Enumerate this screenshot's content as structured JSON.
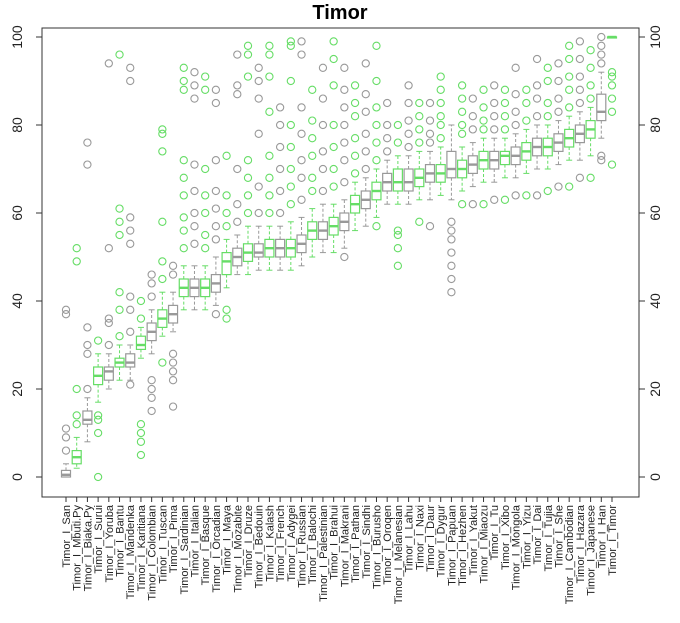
{
  "chart_data": {
    "type": "boxplot",
    "title": "Timor",
    "xlabel": "",
    "ylabel": "",
    "ylim": [
      0,
      100
    ],
    "y_ticks": [
      0,
      20,
      40,
      60,
      80,
      100
    ],
    "y_ticks_both_sides": true,
    "grid": false,
    "colors": [
      "#999999",
      "#66dd66"
    ],
    "boxes": [
      {
        "label": "Timor_I_San",
        "min": 0,
        "q1": 0,
        "median": 0.5,
        "q3": 1.5,
        "max": 3,
        "outliers": [
          6,
          9,
          11,
          37,
          38
        ]
      },
      {
        "label": "Timor_I_Mbuti.Py",
        "min": 2,
        "q1": 3,
        "median": 4.5,
        "q3": 6,
        "max": 9,
        "outliers": [
          12,
          14,
          20,
          49,
          52
        ]
      },
      {
        "label": "Timor_I_Biaka.Py",
        "min": 8,
        "q1": 12,
        "median": 13,
        "q3": 15,
        "max": 18,
        "outliers": [
          20,
          28,
          30,
          34,
          71,
          76
        ]
      },
      {
        "label": "Timor_I_Surui",
        "min": 17,
        "q1": 21,
        "median": 23,
        "q3": 25,
        "max": 28,
        "outliers": [
          0,
          10,
          13,
          14,
          31
        ]
      },
      {
        "label": "Timor_I_Yoruba",
        "min": 20,
        "q1": 22,
        "median": 24,
        "q3": 25,
        "max": 28,
        "outliers": [
          30,
          35,
          36,
          52,
          94
        ]
      },
      {
        "label": "Timor_I_Bantu",
        "min": 22,
        "q1": 25,
        "median": 26,
        "q3": 27,
        "max": 30,
        "outliers": [
          32,
          38,
          42,
          55,
          58,
          61,
          96
        ]
      },
      {
        "label": "Timor_I_Mandenka",
        "min": 22,
        "q1": 25,
        "median": 26,
        "q3": 28,
        "max": 30,
        "outliers": [
          21,
          33,
          38,
          41,
          53,
          56,
          59,
          90,
          93
        ]
      },
      {
        "label": "Timor_I_Karitiana",
        "min": 27,
        "q1": 29,
        "median": 30,
        "q3": 32,
        "max": 34,
        "outliers": [
          5,
          8,
          10,
          12,
          36,
          40
        ]
      },
      {
        "label": "Timor_I_Colombian",
        "min": 28,
        "q1": 31,
        "median": 33,
        "q3": 35,
        "max": 38,
        "outliers": [
          15,
          18,
          20,
          22,
          41,
          44,
          46
        ]
      },
      {
        "label": "Timor_I_Tuscan",
        "min": 32,
        "q1": 34,
        "median": 36,
        "q3": 38,
        "max": 42,
        "outliers": [
          26,
          45,
          49,
          58,
          74,
          78,
          79
        ]
      },
      {
        "label": "Timor_I_Pima",
        "min": 33,
        "q1": 35,
        "median": 37,
        "q3": 39,
        "max": 42,
        "outliers": [
          16,
          22,
          24,
          26,
          28,
          46,
          48
        ]
      },
      {
        "label": "Timor_I_Sardinian",
        "min": 38,
        "q1": 41,
        "median": 43,
        "q3": 45,
        "max": 48,
        "outliers": [
          52,
          56,
          59,
          64,
          68,
          72,
          88,
          90,
          93
        ]
      },
      {
        "label": "Timor_I_Italian",
        "min": 38,
        "q1": 41,
        "median": 43,
        "q3": 45,
        "max": 48,
        "outliers": [
          53,
          57,
          60,
          65,
          71,
          86,
          89,
          92
        ]
      },
      {
        "label": "Timor_I_Basque",
        "min": 38,
        "q1": 41,
        "median": 43,
        "q3": 45,
        "max": 48,
        "outliers": [
          52,
          55,
          60,
          64,
          70,
          88,
          91
        ]
      },
      {
        "label": "Timor_I_Orcadian",
        "min": 39,
        "q1": 42,
        "median": 44,
        "q3": 46,
        "max": 50,
        "outliers": [
          37,
          54,
          57,
          61,
          65,
          72,
          85,
          88
        ]
      },
      {
        "label": "Timor_I_Maya",
        "min": 43,
        "q1": 46,
        "median": 49,
        "q3": 51,
        "max": 54,
        "outliers": [
          36,
          38,
          57,
          60,
          64,
          73
        ]
      },
      {
        "label": "Timor_I_Mozabite",
        "min": 46,
        "q1": 48,
        "median": 50,
        "q3": 52,
        "max": 55,
        "outliers": [
          58,
          62,
          70,
          87,
          89,
          96
        ]
      },
      {
        "label": "Timor_I_Druze",
        "min": 46,
        "q1": 49,
        "median": 51,
        "q3": 53,
        "max": 57,
        "outliers": [
          60,
          64,
          68,
          72,
          91,
          96,
          98
        ]
      },
      {
        "label": "Timor_I_Bedouin",
        "min": 47,
        "q1": 50,
        "median": 51,
        "q3": 53,
        "max": 57,
        "outliers": [
          60,
          66,
          78,
          86,
          90,
          93
        ]
      },
      {
        "label": "Timor_I_Kalash",
        "min": 47,
        "q1": 50,
        "median": 52,
        "q3": 54,
        "max": 57,
        "outliers": [
          60,
          64,
          68,
          73,
          83,
          91,
          96,
          98
        ]
      },
      {
        "label": "Timor_I_French",
        "min": 47,
        "q1": 50,
        "median": 52,
        "q3": 54,
        "max": 57,
        "outliers": [
          60,
          65,
          70,
          75,
          80,
          84
        ]
      },
      {
        "label": "Timor_I_Adygei",
        "min": 47,
        "q1": 50,
        "median": 52,
        "q3": 54,
        "max": 58,
        "outliers": [
          62,
          66,
          70,
          75,
          80,
          90,
          98,
          99
        ]
      },
      {
        "label": "Timor_I_Russian",
        "min": 48,
        "q1": 51,
        "median": 53,
        "q3": 55,
        "max": 59,
        "outliers": [
          63,
          68,
          72,
          78,
          84,
          96,
          99
        ]
      },
      {
        "label": "Timor_I_Balochi",
        "min": 50,
        "q1": 54,
        "median": 56,
        "q3": 58,
        "max": 61,
        "outliers": [
          65,
          68,
          73,
          77,
          81,
          88
        ]
      },
      {
        "label": "Timor_I_Palestinian",
        "min": 51,
        "q1": 54,
        "median": 56,
        "q3": 58,
        "max": 62,
        "outliers": [
          65,
          70,
          74,
          80,
          86,
          93
        ]
      },
      {
        "label": "Timor_I_Brahui",
        "min": 51,
        "q1": 55,
        "median": 57,
        "q3": 59,
        "max": 62,
        "outliers": [
          66,
          70,
          75,
          80,
          89,
          95,
          99
        ]
      },
      {
        "label": "Timor_I_Makrani",
        "min": 52,
        "q1": 56,
        "median": 58,
        "q3": 60,
        "max": 63,
        "outliers": [
          50,
          67,
          72,
          76,
          80,
          84,
          88,
          93
        ]
      },
      {
        "label": "Timor_I_Pathan",
        "min": 56,
        "q1": 60,
        "median": 62,
        "q3": 64,
        "max": 67,
        "outliers": [
          69,
          73,
          77,
          82,
          85,
          89
        ]
      },
      {
        "label": "Timor_I_Sindhi",
        "min": 57,
        "q1": 61,
        "median": 63,
        "q3": 65,
        "max": 68,
        "outliers": [
          70,
          74,
          78,
          83,
          87,
          94
        ]
      },
      {
        "label": "Timor_I_Burusho",
        "min": 59,
        "q1": 63,
        "median": 65,
        "q3": 67,
        "max": 70,
        "outliers": [
          57,
          72,
          76,
          80,
          84,
          90,
          98
        ]
      },
      {
        "label": "Timor_I_Oroqen",
        "min": 62,
        "q1": 65,
        "median": 67,
        "q3": 69,
        "max": 72,
        "outliers": [
          74,
          77,
          80,
          85
        ]
      },
      {
        "label": "Timor_I_Melanesian",
        "min": 62,
        "q1": 65,
        "median": 67,
        "q3": 70,
        "max": 73,
        "outliers": [
          48,
          52,
          55,
          56,
          76,
          80
        ]
      },
      {
        "label": "Timor_I_Lahu",
        "min": 62,
        "q1": 65,
        "median": 67,
        "q3": 70,
        "max": 73,
        "outliers": [
          75,
          78,
          81,
          85,
          89
        ]
      },
      {
        "label": "Timor_I_Naxi",
        "min": 63,
        "q1": 66,
        "median": 68,
        "q3": 70,
        "max": 74,
        "outliers": [
          58,
          76,
          79,
          82,
          85
        ]
      },
      {
        "label": "Timor_I_Daur",
        "min": 63,
        "q1": 67,
        "median": 69,
        "q3": 71,
        "max": 74,
        "outliers": [
          57,
          76,
          78,
          81,
          85
        ]
      },
      {
        "label": "Timor_I_Dygur",
        "min": 64,
        "q1": 67,
        "median": 69,
        "q3": 71,
        "max": 75,
        "outliers": [
          77,
          80,
          82,
          85,
          88,
          91
        ]
      },
      {
        "label": "Timor_I_Papuan",
        "min": 63,
        "q1": 68,
        "median": 70,
        "q3": 74,
        "max": 80,
        "outliers": [
          42,
          45,
          48,
          51,
          54,
          56,
          58
        ]
      },
      {
        "label": "Timor_I_Hezhen",
        "min": 65,
        "q1": 68,
        "median": 70,
        "q3": 72,
        "max": 75,
        "outliers": [
          62,
          78,
          80,
          83,
          86,
          89
        ]
      },
      {
        "label": "Timor_I_Yakut",
        "min": 66,
        "q1": 69,
        "median": 71,
        "q3": 73,
        "max": 76,
        "outliers": [
          62,
          79,
          82,
          86
        ]
      },
      {
        "label": "Timor_I_Miaozu",
        "min": 67,
        "q1": 70,
        "median": 72,
        "q3": 74,
        "max": 77,
        "outliers": [
          62,
          79,
          81,
          84,
          88
        ]
      },
      {
        "label": "Timor_I_Tu",
        "min": 67,
        "q1": 70,
        "median": 72,
        "q3": 74,
        "max": 77,
        "outliers": [
          63,
          79,
          82,
          85,
          89
        ]
      },
      {
        "label": "Timor_I_Xibo",
        "min": 68,
        "q1": 71,
        "median": 73,
        "q3": 74,
        "max": 77,
        "outliers": [
          63,
          79,
          82,
          85,
          88
        ]
      },
      {
        "label": "Timor_I_Mongola",
        "min": 68,
        "q1": 71,
        "median": 73,
        "q3": 75,
        "max": 78,
        "outliers": [
          64,
          80,
          83,
          87,
          93
        ]
      },
      {
        "label": "Timor_I_Yizu",
        "min": 69,
        "q1": 72,
        "median": 74,
        "q3": 76,
        "max": 79,
        "outliers": [
          64,
          81,
          85,
          88
        ]
      },
      {
        "label": "Timor_I_Dai",
        "min": 70,
        "q1": 73,
        "median": 75,
        "q3": 77,
        "max": 80,
        "outliers": [
          64,
          82,
          86,
          89,
          95
        ]
      },
      {
        "label": "Timor_I_Tujia",
        "min": 70,
        "q1": 73,
        "median": 75,
        "q3": 77,
        "max": 80,
        "outliers": [
          65,
          82,
          85,
          90,
          93
        ]
      },
      {
        "label": "Timor_I_She",
        "min": 71,
        "q1": 74,
        "median": 76,
        "q3": 78,
        "max": 81,
        "outliers": [
          66,
          83,
          86,
          90,
          94
        ]
      },
      {
        "label": "Timor_I_Cambodian",
        "min": 72,
        "q1": 75,
        "median": 77,
        "q3": 79,
        "max": 82,
        "outliers": [
          66,
          84,
          88,
          91,
          95,
          98
        ]
      },
      {
        "label": "Timor_I_Hazara",
        "min": 72,
        "q1": 76,
        "median": 78,
        "q3": 80,
        "max": 83,
        "outliers": [
          68,
          85,
          88,
          91,
          95,
          99
        ]
      },
      {
        "label": "Timor_I_Japanese",
        "min": 73,
        "q1": 77,
        "median": 79,
        "q3": 81,
        "max": 84,
        "outliers": [
          68,
          86,
          89,
          93,
          97
        ]
      },
      {
        "label": "Timor_I_Han",
        "min": 77,
        "q1": 81,
        "median": 83,
        "q3": 87,
        "max": 92,
        "outliers": [
          72,
          73,
          94,
          96,
          98,
          100
        ]
      },
      {
        "label": "Timor_I_Timor",
        "min": 100,
        "q1": 100,
        "median": 100,
        "q3": 100,
        "max": 100,
        "outliers": [
          71,
          83,
          86,
          89,
          91,
          92
        ]
      }
    ]
  }
}
